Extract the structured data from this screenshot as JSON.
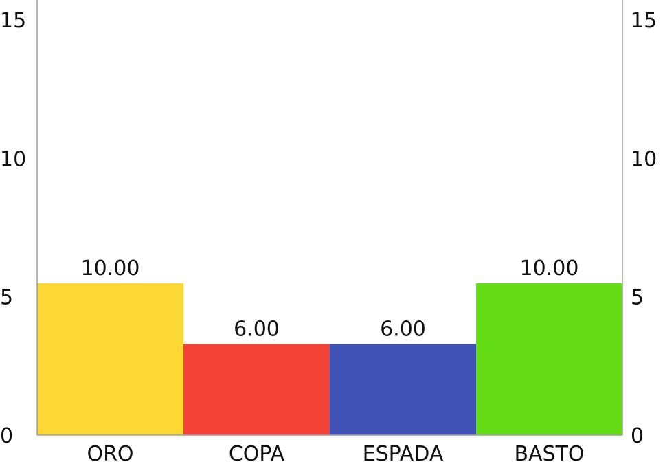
{
  "chart_data": {
    "type": "bar",
    "categories": [
      "ORO",
      "COPA",
      "ESPADA",
      "BASTO"
    ],
    "values": [
      10.0,
      6.0,
      6.0,
      10.0
    ],
    "value_labels": [
      "10.00",
      "6.00",
      "6.00",
      "10.00"
    ],
    "colors": [
      "#FDD835",
      "#F44336",
      "#3F51B5",
      "#64DD17"
    ],
    "y_ticks": [
      0,
      5,
      10,
      15
    ],
    "y_axis_display": {
      "shown_tick_values": [
        0,
        5,
        10,
        15
      ],
      "note": "left and right axes mirror"
    },
    "title": "",
    "xlabel": "",
    "ylabel": "",
    "grid": false,
    "legend": "none"
  }
}
